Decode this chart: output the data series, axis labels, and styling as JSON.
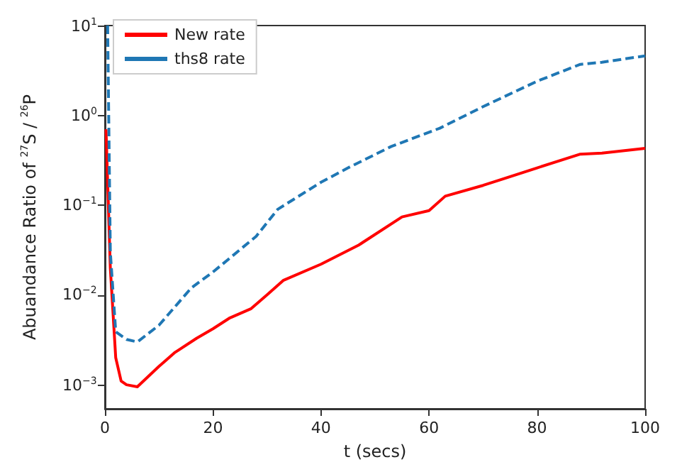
{
  "chart_data": {
    "type": "line",
    "xlabel": "t (secs)",
    "ylabel": "Abuandance Ratio of $^{27}$S / $^{26}$P",
    "log": "y",
    "legend": "top left",
    "grid": false,
    "xlim": [
      0,
      100
    ],
    "xticks": [
      0,
      20,
      40,
      60,
      80,
      100
    ],
    "ylim": [
      0.00054,
      10
    ],
    "yticks": [
      {
        "value": 0.001,
        "label": "10$^{−3}$"
      },
      {
        "value": 0.01,
        "label": "10$^{−2}$"
      },
      {
        "value": 0.1,
        "label": "10$^{−1}$"
      },
      {
        "value": 1,
        "label": "10$^{0}$"
      },
      {
        "value": 10,
        "label": "10$^{1}$"
      }
    ],
    "series": [
      {
        "name": "New rate",
        "color": "#ff0000",
        "line_style": "solid",
        "x": [
          0.2,
          1,
          2,
          3,
          4,
          6,
          10,
          13,
          17,
          20,
          23,
          27,
          30,
          33,
          40,
          47,
          55,
          60,
          63,
          70,
          80,
          88,
          92,
          100
        ],
        "values": [
          0.7,
          0.02,
          0.002,
          0.0011,
          0.001,
          0.00095,
          0.0016,
          0.0023,
          0.0033,
          0.0042,
          0.0055,
          0.007,
          0.01,
          0.0145,
          0.022,
          0.036,
          0.074,
          0.087,
          0.126,
          0.166,
          0.26,
          0.37,
          0.38,
          0.43
        ]
      },
      {
        "name": "ths8 rate",
        "color": "#1f77b4",
        "line_style": "dashed",
        "x": [
          0.5,
          1,
          2,
          4,
          6,
          10,
          16,
          20,
          28,
          32,
          40,
          45,
          53,
          62,
          70,
          80,
          88,
          92,
          100
        ],
        "values": [
          10,
          0.03,
          0.0039,
          0.0032,
          0.003,
          0.0046,
          0.012,
          0.018,
          0.045,
          0.09,
          0.18,
          0.26,
          0.45,
          0.72,
          1.25,
          2.4,
          3.7,
          3.9,
          4.6
        ]
      }
    ]
  }
}
